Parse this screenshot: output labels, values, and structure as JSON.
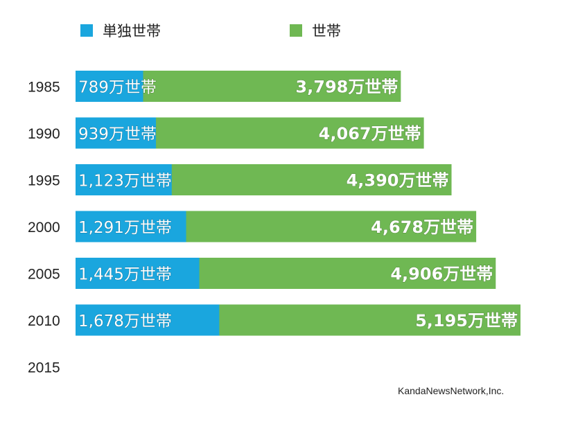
{
  "chart_data": {
    "type": "bar",
    "orientation": "horizontal",
    "stacking": "overlay",
    "categories": [
      "1985",
      "1990",
      "1995",
      "2000",
      "2005",
      "2010",
      "2015"
    ],
    "unit_suffix": "万世帯",
    "series": [
      {
        "name": "単独世帯",
        "color": "#1aa6de",
        "values": [
          789,
          939,
          1123,
          1291,
          1445,
          1678,
          null
        ],
        "labels": [
          "789万世帯",
          "939万世帯",
          "1,123万世帯",
          "1,291万世帯",
          "1,445万世帯",
          "1,678万世帯",
          ""
        ]
      },
      {
        "name": "世帯",
        "color": "#6fb853",
        "values": [
          3798,
          4067,
          4390,
          4678,
          4906,
          5195,
          null
        ],
        "labels": [
          "3,798万世帯",
          "4,067万世帯",
          "4,390万世帯",
          "4,678万世帯",
          "4,906万世帯",
          "5,195万世帯",
          ""
        ]
      }
    ],
    "xlim": [
      0,
      5195
    ],
    "grid": false,
    "legend_position": "top"
  },
  "credit": "KandaNewsNetwork,Inc."
}
